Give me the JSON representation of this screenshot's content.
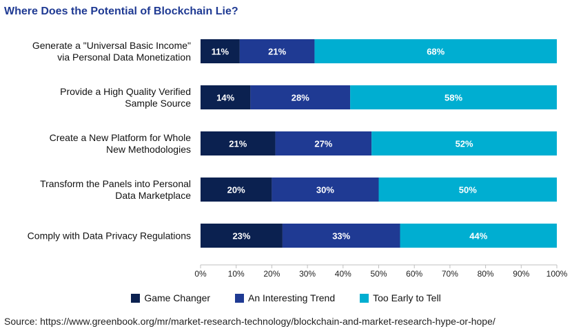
{
  "chart_data": {
    "type": "bar",
    "orientation": "horizontal",
    "stacked": true,
    "title": "Where Does the Potential of Blockchain Lie?",
    "categories": [
      [
        "Generate a \"Universal Basic Income\"",
        "via Personal Data Monetization"
      ],
      [
        "Provide a High Quality Verified",
        "Sample Source"
      ],
      [
        "Create a New Platform for Whole",
        "New Methodologies"
      ],
      [
        "Transform the Panels into Personal",
        "Data Marketplace"
      ],
      [
        "Comply with Data Privacy Regulations"
      ]
    ],
    "series": [
      {
        "name": "Game Changer",
        "color": "#0b2150",
        "values": [
          11,
          14,
          21,
          20,
          23
        ]
      },
      {
        "name": "An Interesting Trend",
        "color": "#1f3a93",
        "values": [
          21,
          28,
          27,
          30,
          33
        ]
      },
      {
        "name": "Too Early to Tell",
        "color": "#00aed1",
        "values": [
          68,
          58,
          52,
          50,
          44
        ]
      }
    ],
    "xlim": [
      0,
      100
    ],
    "xticks": [
      "0%",
      "10%",
      "20%",
      "30%",
      "40%",
      "50%",
      "60%",
      "70%",
      "80%",
      "90%",
      "100%"
    ],
    "value_suffix": "%",
    "grid": false,
    "legend_position": "bottom"
  },
  "source_text": "Source: https://www.greenbook.org/mr/market-research-technology/blockchain-and-market-research-hype-or-hope/"
}
